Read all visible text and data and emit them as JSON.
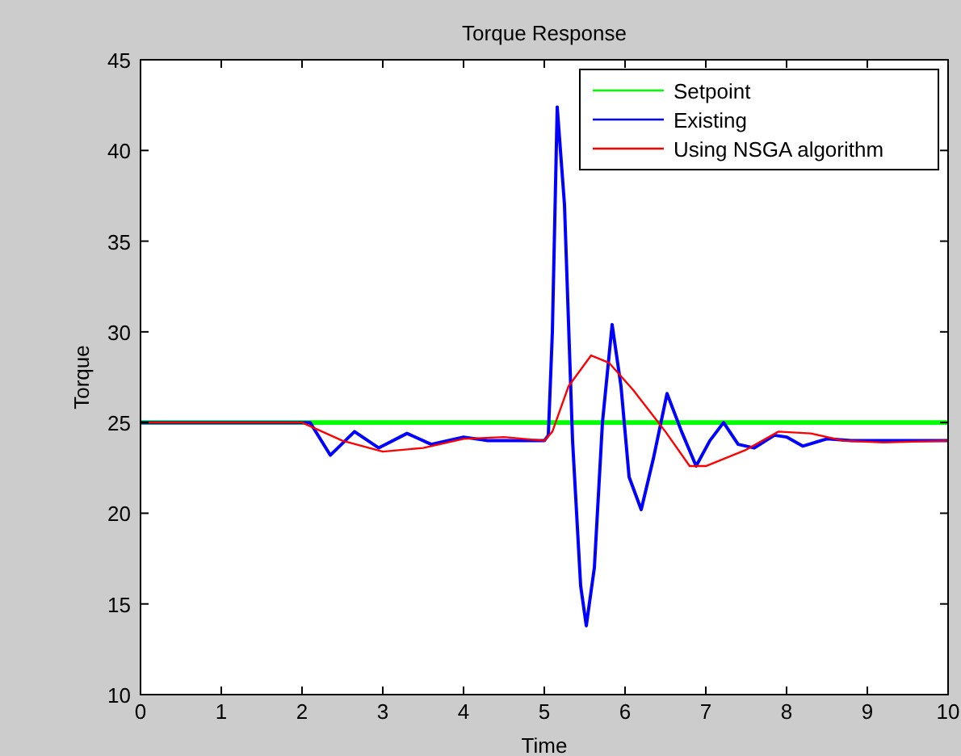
{
  "chart_data": {
    "type": "line",
    "title": "Torque Response",
    "xlabel": "Time",
    "ylabel": "Torque",
    "xlim": [
      0,
      10
    ],
    "ylim": [
      10,
      45
    ],
    "xticks": [
      0,
      1,
      2,
      3,
      4,
      5,
      6,
      7,
      8,
      9,
      10
    ],
    "yticks": [
      10,
      15,
      20,
      25,
      30,
      35,
      40,
      45
    ],
    "legend": "top right",
    "grid": false,
    "series": [
      {
        "name": "Setpoint",
        "color": "#00ff00",
        "x": [
          0,
          10
        ],
        "values": [
          25,
          25
        ]
      },
      {
        "name": "Existing",
        "color": "#0000ff",
        "x": [
          0,
          2,
          2.1,
          2.35,
          2.65,
          2.95,
          3.3,
          3.6,
          4,
          4.3,
          4.6,
          5,
          5.05,
          5.1,
          5.16,
          5.25,
          5.35,
          5.45,
          5.52,
          5.62,
          5.72,
          5.84,
          5.95,
          6.05,
          6.2,
          6.35,
          6.52,
          6.7,
          6.88,
          7.05,
          7.22,
          7.4,
          7.6,
          7.85,
          8.0,
          8.2,
          8.5,
          8.8,
          9.2,
          10
        ],
        "values": [
          25,
          25,
          25,
          23.2,
          24.5,
          23.6,
          24.4,
          23.8,
          24.2,
          24,
          24,
          24,
          24.3,
          30,
          42.4,
          37,
          24,
          16,
          13.8,
          17,
          25,
          30.4,
          27,
          22,
          20.2,
          23,
          26.6,
          24.5,
          22.6,
          24,
          25,
          23.8,
          23.6,
          24.3,
          24.2,
          23.7,
          24.1,
          24,
          24,
          24
        ]
      },
      {
        "name": "Using NSGA algorithm",
        "color": "#ff0000",
        "x": [
          0,
          2,
          2.5,
          3,
          3.5,
          4,
          4.5,
          5,
          5.1,
          5.3,
          5.58,
          5.8,
          6.1,
          6.5,
          6.8,
          7,
          7.5,
          7.9,
          8.3,
          8.7,
          9.2,
          10
        ],
        "values": [
          25,
          25,
          24,
          23.4,
          23.6,
          24.1,
          24.2,
          24,
          24.5,
          27,
          28.7,
          28.3,
          26.8,
          24.5,
          22.6,
          22.6,
          23.5,
          24.5,
          24.4,
          24,
          23.9,
          24
        ]
      }
    ]
  }
}
